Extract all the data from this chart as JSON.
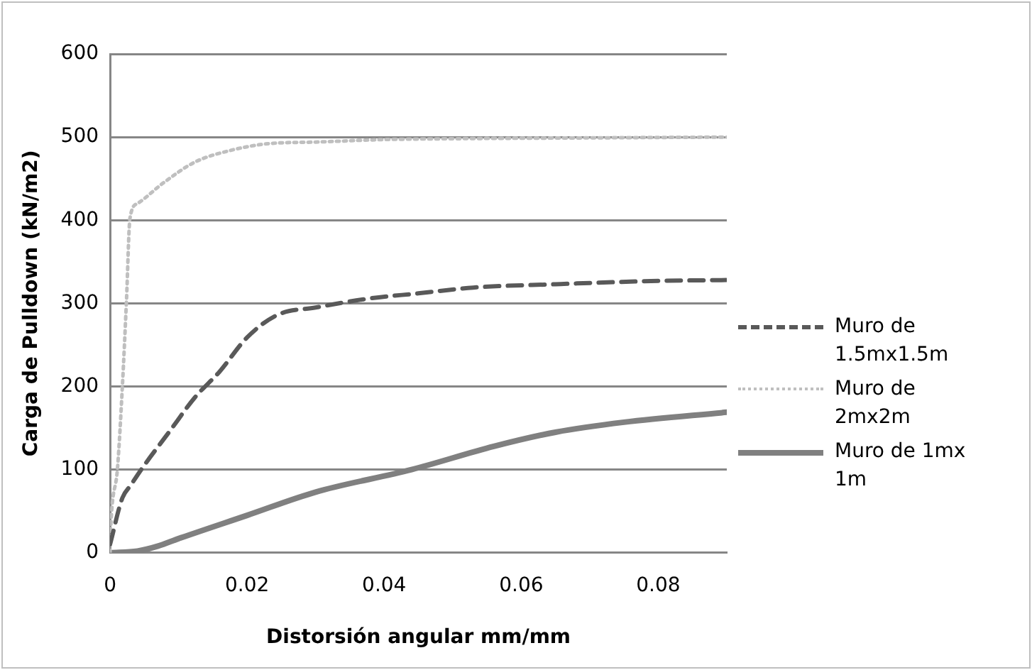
{
  "chart_data": {
    "type": "line",
    "xlabel": "Distorsión angular mm/mm",
    "ylabel": "Carga de Pulldown (kN/m2)",
    "xlim": [
      0,
      0.09
    ],
    "xticks": [
      0,
      0.02,
      0.04,
      0.06,
      0.08
    ],
    "ylim": [
      0,
      600
    ],
    "yticks": [
      0,
      100,
      200,
      300,
      400,
      500,
      600
    ],
    "grid": "y",
    "legend": "right",
    "marker": "none",
    "series": [
      {
        "name": "Muro de 1.5mx1.5m",
        "color": "#595959",
        "line_style": "dashed",
        "x": [
          0,
          0.0018,
          0.003,
          0.0048,
          0.0086,
          0.0124,
          0.016,
          0.02,
          0.0244,
          0.03,
          0.038,
          0.045,
          0.053,
          0.065,
          0.08,
          0.09
        ],
        "values": [
          10,
          66,
          81,
          103,
          145,
          187,
          218,
          259,
          286,
          295,
          306,
          312,
          319,
          323,
          327,
          328
        ]
      },
      {
        "name": "Muro de 2mx2m",
        "color": "#bfbfbf",
        "line_style": "dotted",
        "x": [
          0,
          0.0001,
          0.0011,
          0.0018,
          0.0024,
          0.0029,
          0.004,
          0.0078,
          0.0124,
          0.0176,
          0.023,
          0.03,
          0.04,
          0.05,
          0.07,
          0.09
        ],
        "values": [
          0,
          29,
          103,
          200,
          304,
          402,
          420,
          445,
          470,
          484,
          492,
          494,
          497,
          498,
          499,
          500
        ]
      },
      {
        "name": "Muro de 1mx 1m",
        "color": "#808080",
        "line_style": "solid",
        "x": [
          0,
          0.004,
          0.007,
          0.01,
          0.02,
          0.03,
          0.044,
          0.056,
          0.065,
          0.075,
          0.09
        ],
        "values": [
          0,
          2,
          8,
          17,
          45,
          73,
          100,
          128,
          145,
          157,
          169
        ]
      }
    ]
  }
}
